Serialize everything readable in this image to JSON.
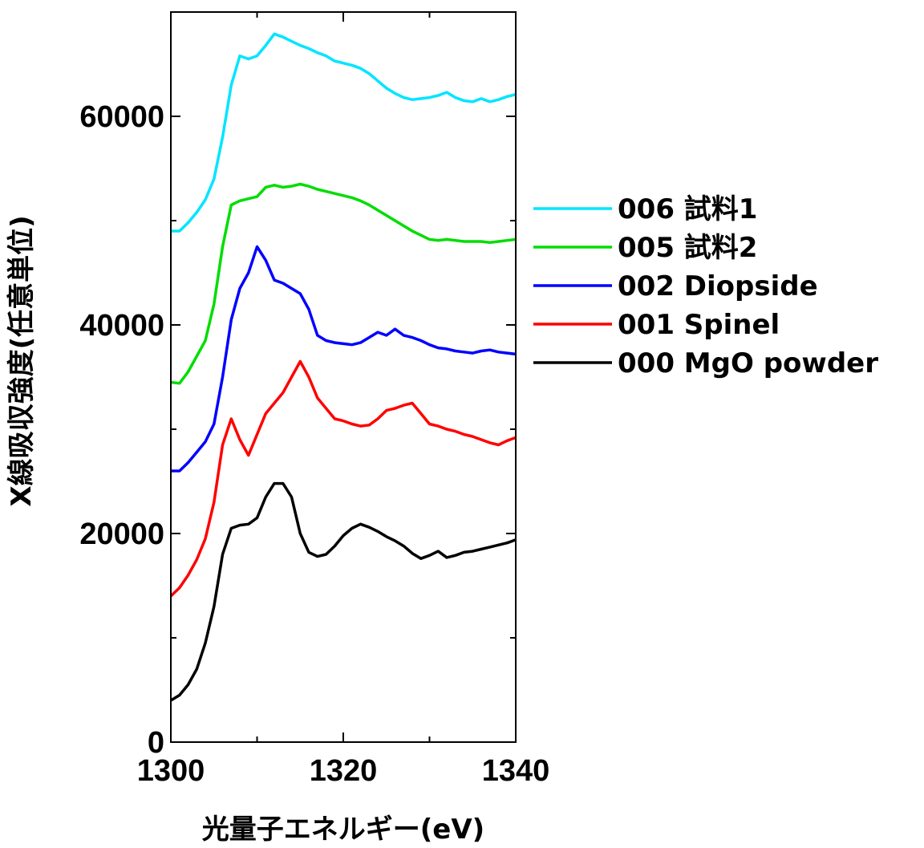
{
  "chart_data": {
    "type": "line",
    "xlabel": "光量子エネルギー(eV)",
    "ylabel": "X線吸収強度(任意単位)",
    "xlim": [
      1300,
      1340
    ],
    "ylim": [
      0,
      70000
    ],
    "x_ticks": [
      1300,
      1320,
      1340
    ],
    "x_minor_ticks": [
      1310,
      1330
    ],
    "y_ticks": [
      0,
      20000,
      40000,
      60000
    ],
    "y_minor_ticks": [
      10000,
      30000,
      50000
    ],
    "grid": false,
    "legend_position": "right",
    "series": [
      {
        "name": "006 試料1",
        "color": "#00e5ff",
        "x": [
          1300,
          1301,
          1302,
          1303,
          1304,
          1305,
          1306,
          1307,
          1308,
          1309,
          1310,
          1311,
          1312,
          1313,
          1314,
          1315,
          1316,
          1317,
          1318,
          1319,
          1320,
          1321,
          1322,
          1323,
          1324,
          1325,
          1326,
          1327,
          1328,
          1329,
          1330,
          1331,
          1332,
          1333,
          1334,
          1335,
          1336,
          1337,
          1338,
          1339,
          1340
        ],
        "values": [
          49000,
          49000,
          49800,
          50800,
          52000,
          54000,
          58000,
          63000,
          65800,
          65500,
          65800,
          66800,
          67900,
          67600,
          67200,
          66800,
          66500,
          66100,
          65800,
          65300,
          65100,
          64900,
          64600,
          64100,
          63400,
          62700,
          62200,
          61800,
          61600,
          61700,
          61800,
          62000,
          62300,
          61800,
          61500,
          61400,
          61700,
          61400,
          61600,
          61900,
          62100
        ]
      },
      {
        "name": "005 試料2",
        "color": "#00dd00",
        "x": [
          1300,
          1301,
          1302,
          1303,
          1304,
          1305,
          1306,
          1307,
          1308,
          1309,
          1310,
          1311,
          1312,
          1313,
          1314,
          1315,
          1316,
          1317,
          1318,
          1319,
          1320,
          1321,
          1322,
          1323,
          1324,
          1325,
          1326,
          1327,
          1328,
          1329,
          1330,
          1331,
          1332,
          1333,
          1334,
          1335,
          1336,
          1337,
          1338,
          1339,
          1340
        ],
        "values": [
          34500,
          34400,
          35500,
          37000,
          38500,
          42000,
          47500,
          51500,
          51900,
          52100,
          52300,
          53200,
          53400,
          53200,
          53300,
          53500,
          53300,
          53000,
          52800,
          52600,
          52400,
          52200,
          51900,
          51500,
          51000,
          50500,
          50000,
          49500,
          49000,
          48600,
          48200,
          48100,
          48200,
          48100,
          48000,
          48000,
          48000,
          47900,
          48000,
          48100,
          48200
        ]
      },
      {
        "name": "002 Diopside",
        "color": "#0000ff",
        "x": [
          1300,
          1301,
          1302,
          1303,
          1304,
          1305,
          1306,
          1307,
          1308,
          1309,
          1310,
          1311,
          1312,
          1313,
          1314,
          1315,
          1316,
          1317,
          1318,
          1319,
          1320,
          1321,
          1322,
          1323,
          1324,
          1325,
          1326,
          1327,
          1328,
          1329,
          1330,
          1331,
          1332,
          1333,
          1334,
          1335,
          1336,
          1337,
          1338,
          1339,
          1340
        ],
        "values": [
          26000,
          26000,
          26800,
          27800,
          28800,
          30500,
          35000,
          40500,
          43500,
          45000,
          47500,
          46200,
          44300,
          44000,
          43500,
          43000,
          41500,
          39000,
          38500,
          38300,
          38200,
          38100,
          38300,
          38800,
          39300,
          39000,
          39600,
          39000,
          38800,
          38500,
          38100,
          37800,
          37700,
          37500,
          37400,
          37300,
          37500,
          37600,
          37400,
          37300,
          37200
        ]
      },
      {
        "name": "001 Spinel",
        "color": "#ff0000",
        "x": [
          1300,
          1301,
          1302,
          1303,
          1304,
          1305,
          1306,
          1307,
          1308,
          1309,
          1310,
          1311,
          1312,
          1313,
          1314,
          1315,
          1316,
          1317,
          1318,
          1319,
          1320,
          1321,
          1322,
          1323,
          1324,
          1325,
          1326,
          1327,
          1328,
          1329,
          1330,
          1331,
          1332,
          1333,
          1334,
          1335,
          1336,
          1337,
          1338,
          1339,
          1340
        ],
        "values": [
          14000,
          14800,
          16000,
          17500,
          19500,
          23000,
          28500,
          31000,
          29000,
          27500,
          29500,
          31500,
          32500,
          33500,
          35000,
          36500,
          35000,
          33000,
          32000,
          31000,
          30800,
          30500,
          30300,
          30400,
          31000,
          31800,
          32000,
          32300,
          32500,
          31500,
          30500,
          30300,
          30000,
          29800,
          29500,
          29300,
          29000,
          28700,
          28500,
          28900,
          29200
        ]
      },
      {
        "name": "000 MgO powder",
        "color": "#000000",
        "x": [
          1300,
          1301,
          1302,
          1303,
          1304,
          1305,
          1306,
          1307,
          1308,
          1309,
          1310,
          1311,
          1312,
          1313,
          1314,
          1315,
          1316,
          1317,
          1318,
          1319,
          1320,
          1321,
          1322,
          1323,
          1324,
          1325,
          1326,
          1327,
          1328,
          1329,
          1330,
          1331,
          1332,
          1333,
          1334,
          1335,
          1336,
          1337,
          1338,
          1339,
          1340
        ],
        "values": [
          4000,
          4500,
          5500,
          7000,
          9500,
          13000,
          18000,
          20500,
          20800,
          20900,
          21500,
          23500,
          24800,
          24800,
          23500,
          20000,
          18200,
          17800,
          18000,
          18800,
          19800,
          20500,
          20900,
          20600,
          20200,
          19700,
          19300,
          18800,
          18100,
          17600,
          17900,
          18300,
          17700,
          17900,
          18200,
          18300,
          18500,
          18700,
          18900,
          19100,
          19400
        ]
      }
    ]
  }
}
